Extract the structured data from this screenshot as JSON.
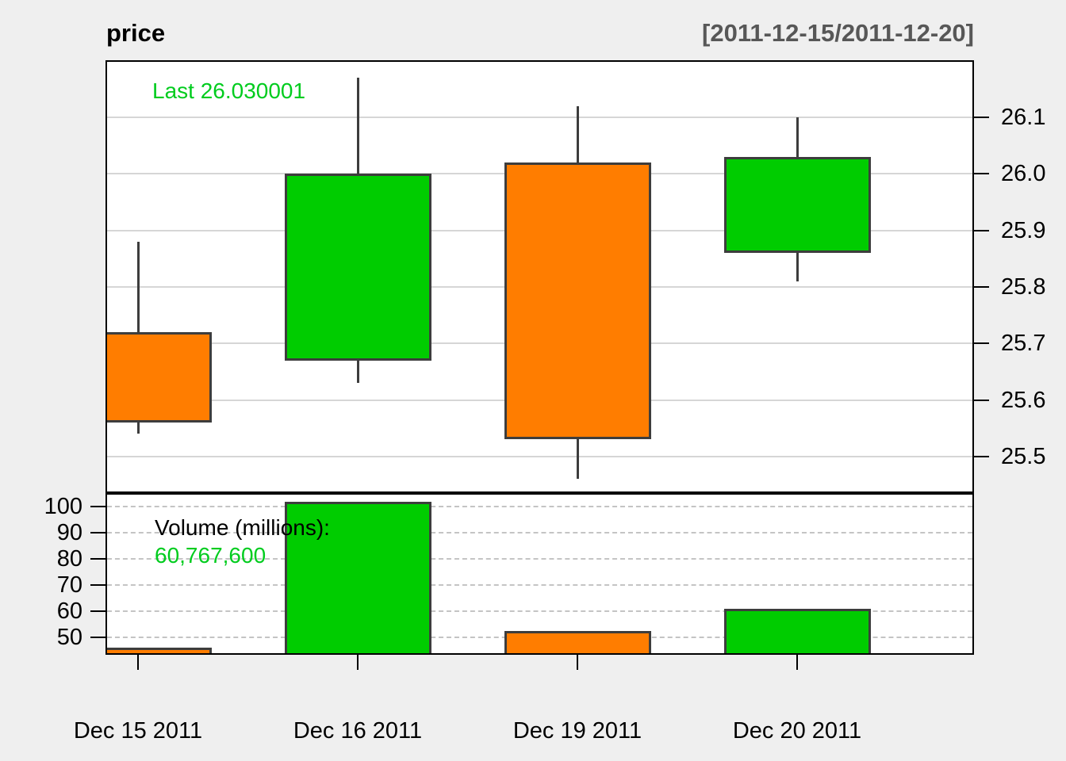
{
  "title": "price",
  "range_label": "[2011-12-15/2011-12-20]",
  "annotations": {
    "last_label": "Last 26.030001",
    "volume_heading": "Volume (millions):",
    "volume_value": "60,767,600"
  },
  "chart_data": {
    "type": "candlestick",
    "title": "price",
    "subtitle": "[2011-12-15/2011-12-20]",
    "legend_position": "none",
    "grid": "on",
    "categories": [
      "Dec 15 2011",
      "Dec 16 2011",
      "Dec 19 2011",
      "Dec 20 2011"
    ],
    "series": [
      {
        "date": "Dec 15 2011",
        "open": 25.72,
        "high": 25.88,
        "low": 25.54,
        "close": 25.56,
        "volume_millions": 46.0,
        "direction": "down"
      },
      {
        "date": "Dec 16 2011",
        "open": 25.67,
        "high": 26.17,
        "low": 25.63,
        "close": 26.0,
        "volume_millions": 101.7,
        "direction": "up"
      },
      {
        "date": "Dec 19 2011",
        "open": 26.02,
        "high": 26.12,
        "low": 25.46,
        "close": 25.53,
        "volume_millions": 52.4,
        "direction": "down"
      },
      {
        "date": "Dec 20 2011",
        "open": 25.86,
        "high": 26.1,
        "low": 25.81,
        "close": 26.030001,
        "volume_millions": 60.7676,
        "direction": "up"
      }
    ],
    "last_value": 26.030001,
    "last_volume_text": "60,767,600",
    "price_axis": {
      "side": "right",
      "tick_values": [
        26.1,
        26.0,
        25.9,
        25.8,
        25.7,
        25.6,
        25.5
      ],
      "tick_labels": [
        "26.1",
        "26.0",
        "25.9",
        "25.8",
        "25.7",
        "25.6",
        "25.5"
      ],
      "grid_style": "solid"
    },
    "volume_axis": {
      "side": "left",
      "tick_values": [
        100,
        90,
        80,
        70,
        60,
        50
      ],
      "tick_labels": [
        "100",
        "90",
        "80",
        "70",
        "60",
        "50"
      ],
      "grid_style": "dashed"
    }
  },
  "colors": {
    "up": "#00CC00",
    "down": "#FF7D00",
    "outline": "#3D3D3D",
    "grid_solid": "#D6D6D6",
    "grid_dashed": "#C4C4C4",
    "background": "#EFEFEF",
    "panel_background": "#FFFFFF",
    "green_text": "#00CC1E",
    "range_text": "#575757"
  }
}
